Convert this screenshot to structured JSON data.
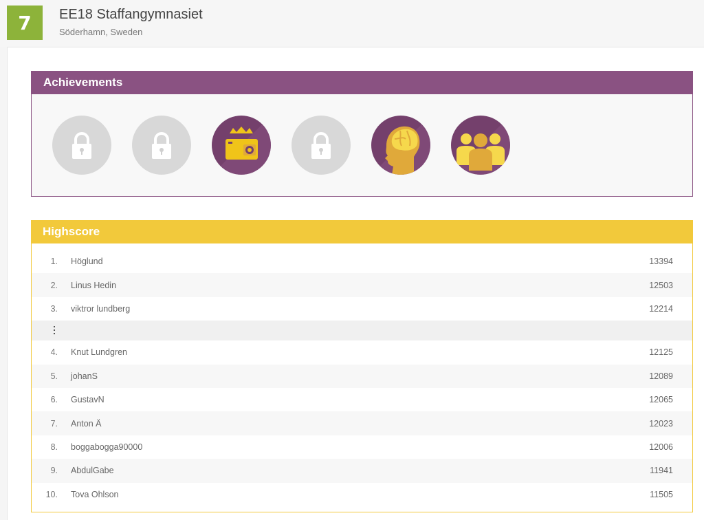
{
  "header": {
    "rank": "7",
    "school_name": "EE18 Staffangymnasiet",
    "location": "Söderhamn, Sweden"
  },
  "achievements": {
    "title": "Achievements",
    "badges": [
      {
        "icon": "lock-icon",
        "state": "locked"
      },
      {
        "icon": "lock-icon",
        "state": "locked"
      },
      {
        "icon": "camera-crown-icon",
        "state": "unlocked"
      },
      {
        "icon": "lock-icon",
        "state": "locked"
      },
      {
        "icon": "brain-head-icon",
        "state": "unlocked"
      },
      {
        "icon": "group-icon",
        "state": "unlocked"
      }
    ]
  },
  "highscore": {
    "title": "Highscore",
    "top": [
      {
        "rank": "1.",
        "name": "Höglund",
        "score": "13394"
      },
      {
        "rank": "2.",
        "name": "Linus Hedin",
        "score": "12503"
      },
      {
        "rank": "3.",
        "name": "viktror lundberg",
        "score": "12214"
      }
    ],
    "rest": [
      {
        "rank": "4.",
        "name": "Knut Lundgren",
        "score": "12125"
      },
      {
        "rank": "5.",
        "name": "johanS",
        "score": "12089"
      },
      {
        "rank": "6.",
        "name": "GustavN",
        "score": "12065"
      },
      {
        "rank": "7.",
        "name": "Anton Ä",
        "score": "12023"
      },
      {
        "rank": "8.",
        "name": "boggabogga90000",
        "score": "12006"
      },
      {
        "rank": "9.",
        "name": "AbdulGabe",
        "score": "11941"
      },
      {
        "rank": "10.",
        "name": "Tova Ohlson",
        "score": "11505"
      }
    ]
  },
  "colors": {
    "rank_badge": "#8db33a",
    "achievements_accent": "#8a5282",
    "highscore_accent": "#f2c93b",
    "badge_gold": "#f0c419"
  }
}
